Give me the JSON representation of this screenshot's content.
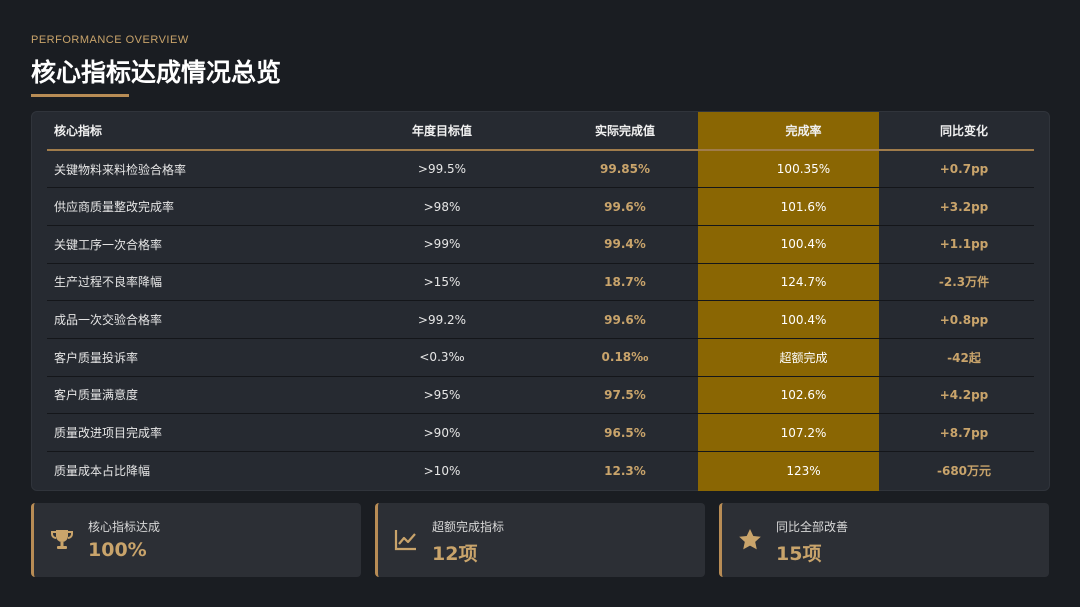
{
  "header": {
    "eyebrow": "PERFORMANCE OVERVIEW",
    "title": "核心指标达成情况总览"
  },
  "colors": {
    "accent": "#c9a46b",
    "highlight_column": "#8a6603",
    "background": "#1a1d22",
    "card": "#262a31"
  },
  "table": {
    "headers": [
      "核心指标",
      "年度目标值",
      "实际完成值",
      "完成率",
      "同比变化"
    ],
    "rows": [
      [
        "关键物料来料检验合格率",
        ">99.5%",
        "99.85%",
        "100.35%",
        "+0.7pp"
      ],
      [
        "供应商质量整改完成率",
        ">98%",
        "99.6%",
        "101.6%",
        "+3.2pp"
      ],
      [
        "关键工序一次合格率",
        ">99%",
        "99.4%",
        "100.4%",
        "+1.1pp"
      ],
      [
        "生产过程不良率降幅",
        ">15%",
        "18.7%",
        "124.7%",
        "-2.3万件"
      ],
      [
        "成品一次交验合格率",
        ">99.2%",
        "99.6%",
        "100.4%",
        "+0.8pp"
      ],
      [
        "客户质量投诉率",
        "<0.3‰",
        "0.18‰",
        "超额完成",
        "-42起"
      ],
      [
        "客户质量满意度",
        ">95%",
        "97.5%",
        "102.6%",
        "+4.2pp"
      ],
      [
        "质量改进项目完成率",
        ">90%",
        "96.5%",
        "107.2%",
        "+8.7pp"
      ],
      [
        "质量成本占比降幅",
        ">10%",
        "12.3%",
        "123%",
        "-680万元"
      ]
    ]
  },
  "stats": [
    {
      "icon": "trophy-icon",
      "label": "核心指标达成",
      "value": "100%"
    },
    {
      "icon": "line-chart-icon",
      "label": "超额完成指标",
      "value": "12项"
    },
    {
      "icon": "star-icon",
      "label": "同比全部改善",
      "value": "15项"
    }
  ]
}
